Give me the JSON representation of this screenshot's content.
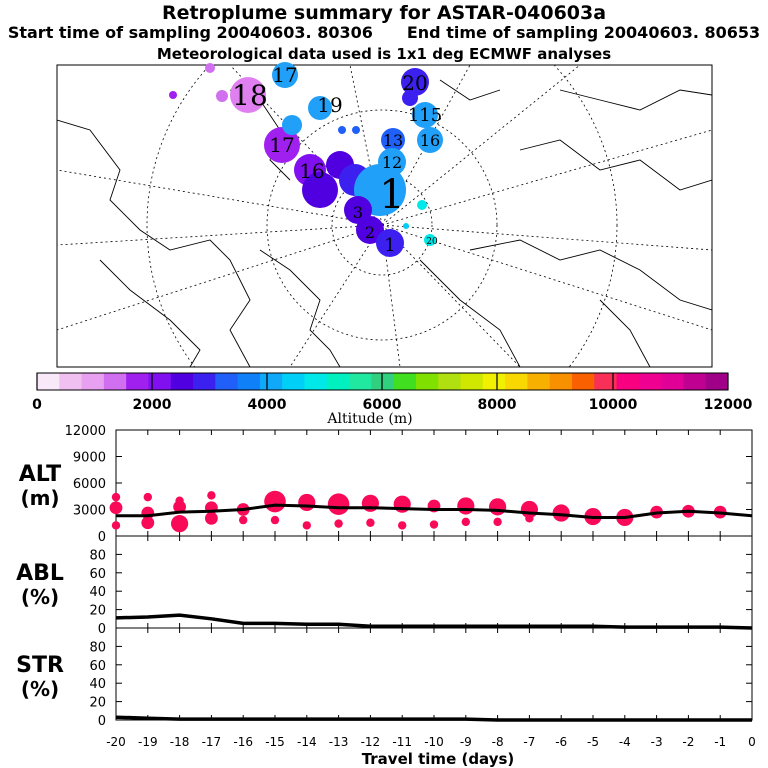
{
  "header": {
    "title": "Retroplume summary for ASTAR-040603a",
    "start_label": "Start time of sampling 20040603. 80306",
    "end_label": "End time of sampling 20040603. 80653",
    "met_label": "Meteorological data used is 1x1 deg ECMWF analyses"
  },
  "colorbar": {
    "title": "Altitude (m)",
    "ticks": [
      "0",
      "2000",
      "4000",
      "6000",
      "8000",
      "10000",
      "12000"
    ],
    "colors": [
      "#f8e8f8",
      "#f0c0f0",
      "#e8a0f0",
      "#d070f0",
      "#a020f0",
      "#8010f0",
      "#5000e0",
      "#3c20f0",
      "#2060f8",
      "#1080f8",
      "#10a8f8",
      "#00d0f8",
      "#00e8e8",
      "#00f0c0",
      "#20e8a0",
      "#30d080",
      "#40e020",
      "#80e000",
      "#b0e010",
      "#d0e800",
      "#f0f000",
      "#f8d800",
      "#f8b000",
      "#f89000",
      "#f86000",
      "#f83058",
      "#f80080",
      "#f00090",
      "#e00098",
      "#c00090",
      "#a00088"
    ]
  },
  "map": {
    "labels": [
      {
        "text": "17",
        "color": "#20a0f8"
      },
      {
        "text": "18",
        "color": "#d070f0"
      },
      {
        "text": "20",
        "color": "#3c20f0"
      },
      {
        "text": "19",
        "color": "#20a0f8"
      },
      {
        "text": "115",
        "color": "#20a0f8"
      },
      {
        "text": "16",
        "color": "#20a0f8"
      },
      {
        "text": "13",
        "color": "#2060f8"
      },
      {
        "text": "17",
        "color": "#a020f0"
      },
      {
        "text": "16",
        "color": "#8010f0"
      },
      {
        "text": "12",
        "color": "#20a0f8"
      },
      {
        "text": "1",
        "color": "#20a0f8"
      },
      {
        "text": "3",
        "color": "#5000e0"
      },
      {
        "text": "2",
        "color": "#5000e0"
      },
      {
        "text": "1",
        "color": "#5000e0"
      },
      {
        "text": "20",
        "color": "#00d0f8"
      }
    ]
  },
  "chart_data": [
    {
      "name": "ALT",
      "type": "scatter",
      "ylabel": "ALT",
      "yunit": "(m)",
      "ylim": [
        0,
        12000
      ],
      "yticks": [
        "12000",
        "9000",
        "6000",
        "3000",
        "0"
      ],
      "x": [
        -20,
        -19,
        -18,
        -17,
        -16,
        -15,
        -14,
        -13,
        -12,
        -11,
        -10,
        -9,
        -8,
        -7,
        -6,
        -5,
        -4,
        -3,
        -2,
        -1,
        0
      ],
      "series": [
        {
          "name": "mean altitude",
          "values": [
            2300,
            2300,
            2700,
            2800,
            3000,
            3500,
            3400,
            3200,
            3200,
            3100,
            3000,
            3000,
            2900,
            2600,
            2400,
            2100,
            2100,
            2600,
            2800,
            2600,
            2300
          ]
        },
        {
          "name": "plume clusters",
          "points": [
            [
              -20,
              3200,
              2
            ],
            [
              -20,
              4400,
              1
            ],
            [
              -20,
              1200,
              1
            ],
            [
              -19,
              2600,
              2
            ],
            [
              -19,
              1500,
              2
            ],
            [
              -19,
              4400,
              1
            ],
            [
              -18,
              3300,
              2
            ],
            [
              -18,
              1400,
              3
            ],
            [
              -18,
              4000,
              1
            ],
            [
              -17,
              3200,
              2
            ],
            [
              -17,
              2000,
              2
            ],
            [
              -17,
              4600,
              1
            ],
            [
              -16,
              3000,
              2
            ],
            [
              -16,
              1800,
              1
            ],
            [
              -15,
              3900,
              4
            ],
            [
              -15,
              1800,
              1
            ],
            [
              -14,
              3800,
              3
            ],
            [
              -14,
              1200,
              1
            ],
            [
              -13,
              3600,
              4
            ],
            [
              -13,
              1400,
              1
            ],
            [
              -12,
              3700,
              3
            ],
            [
              -12,
              1500,
              1
            ],
            [
              -11,
              3600,
              3
            ],
            [
              -11,
              1200,
              1
            ],
            [
              -10,
              3400,
              2
            ],
            [
              -10,
              1300,
              1
            ],
            [
              -9,
              3400,
              3
            ],
            [
              -9,
              1600,
              1
            ],
            [
              -8,
              3300,
              3
            ],
            [
              -8,
              1600,
              1
            ],
            [
              -7,
              3000,
              3
            ],
            [
              -7,
              2000,
              1
            ],
            [
              -6,
              2600,
              3
            ],
            [
              -5,
              2200,
              3
            ],
            [
              -4,
              2100,
              3
            ],
            [
              -3,
              2700,
              2
            ],
            [
              -2,
              2800,
              2
            ],
            [
              -1,
              2700,
              2
            ]
          ]
        }
      ]
    },
    {
      "name": "ABL",
      "type": "line",
      "ylabel": "ABL",
      "yunit": "(%)",
      "ylim": [
        0,
        100
      ],
      "yticks": [
        "80",
        "60",
        "40",
        "20",
        "0"
      ],
      "x": [
        -20,
        -19,
        -18,
        -17,
        -16,
        -15,
        -14,
        -13,
        -12,
        -11,
        -10,
        -9,
        -8,
        -7,
        -6,
        -5,
        -4,
        -3,
        -2,
        -1,
        0
      ],
      "values": [
        11,
        12,
        14,
        10,
        5,
        5,
        4,
        4,
        2,
        2,
        2,
        2,
        2,
        2,
        2,
        2,
        1,
        1,
        1,
        1,
        0
      ]
    },
    {
      "name": "STR",
      "type": "line",
      "ylabel": "STR",
      "yunit": "(%)",
      "ylim": [
        0,
        100
      ],
      "yticks": [
        "80",
        "60",
        "40",
        "20",
        "0"
      ],
      "x": [
        -20,
        -19,
        -18,
        -17,
        -16,
        -15,
        -14,
        -13,
        -12,
        -11,
        -10,
        -9,
        -8,
        -7,
        -6,
        -5,
        -4,
        -3,
        -2,
        -1,
        0
      ],
      "values": [
        3,
        2,
        1,
        1,
        1,
        1,
        1,
        1,
        1,
        1,
        1,
        1,
        0,
        0,
        0,
        0,
        0,
        0,
        0,
        0,
        0
      ],
      "xlabel": "Travel time (days)",
      "xticks": [
        "-20",
        "-19",
        "-18",
        "-17",
        "-16",
        "-15",
        "-14",
        "-13",
        "-12",
        "-11",
        "-10",
        "-9",
        "-8",
        "-7",
        "-6",
        "-5",
        "-4",
        "-3",
        "-2",
        "-1",
        "0"
      ],
      "xlim": [
        -20,
        0
      ]
    }
  ]
}
